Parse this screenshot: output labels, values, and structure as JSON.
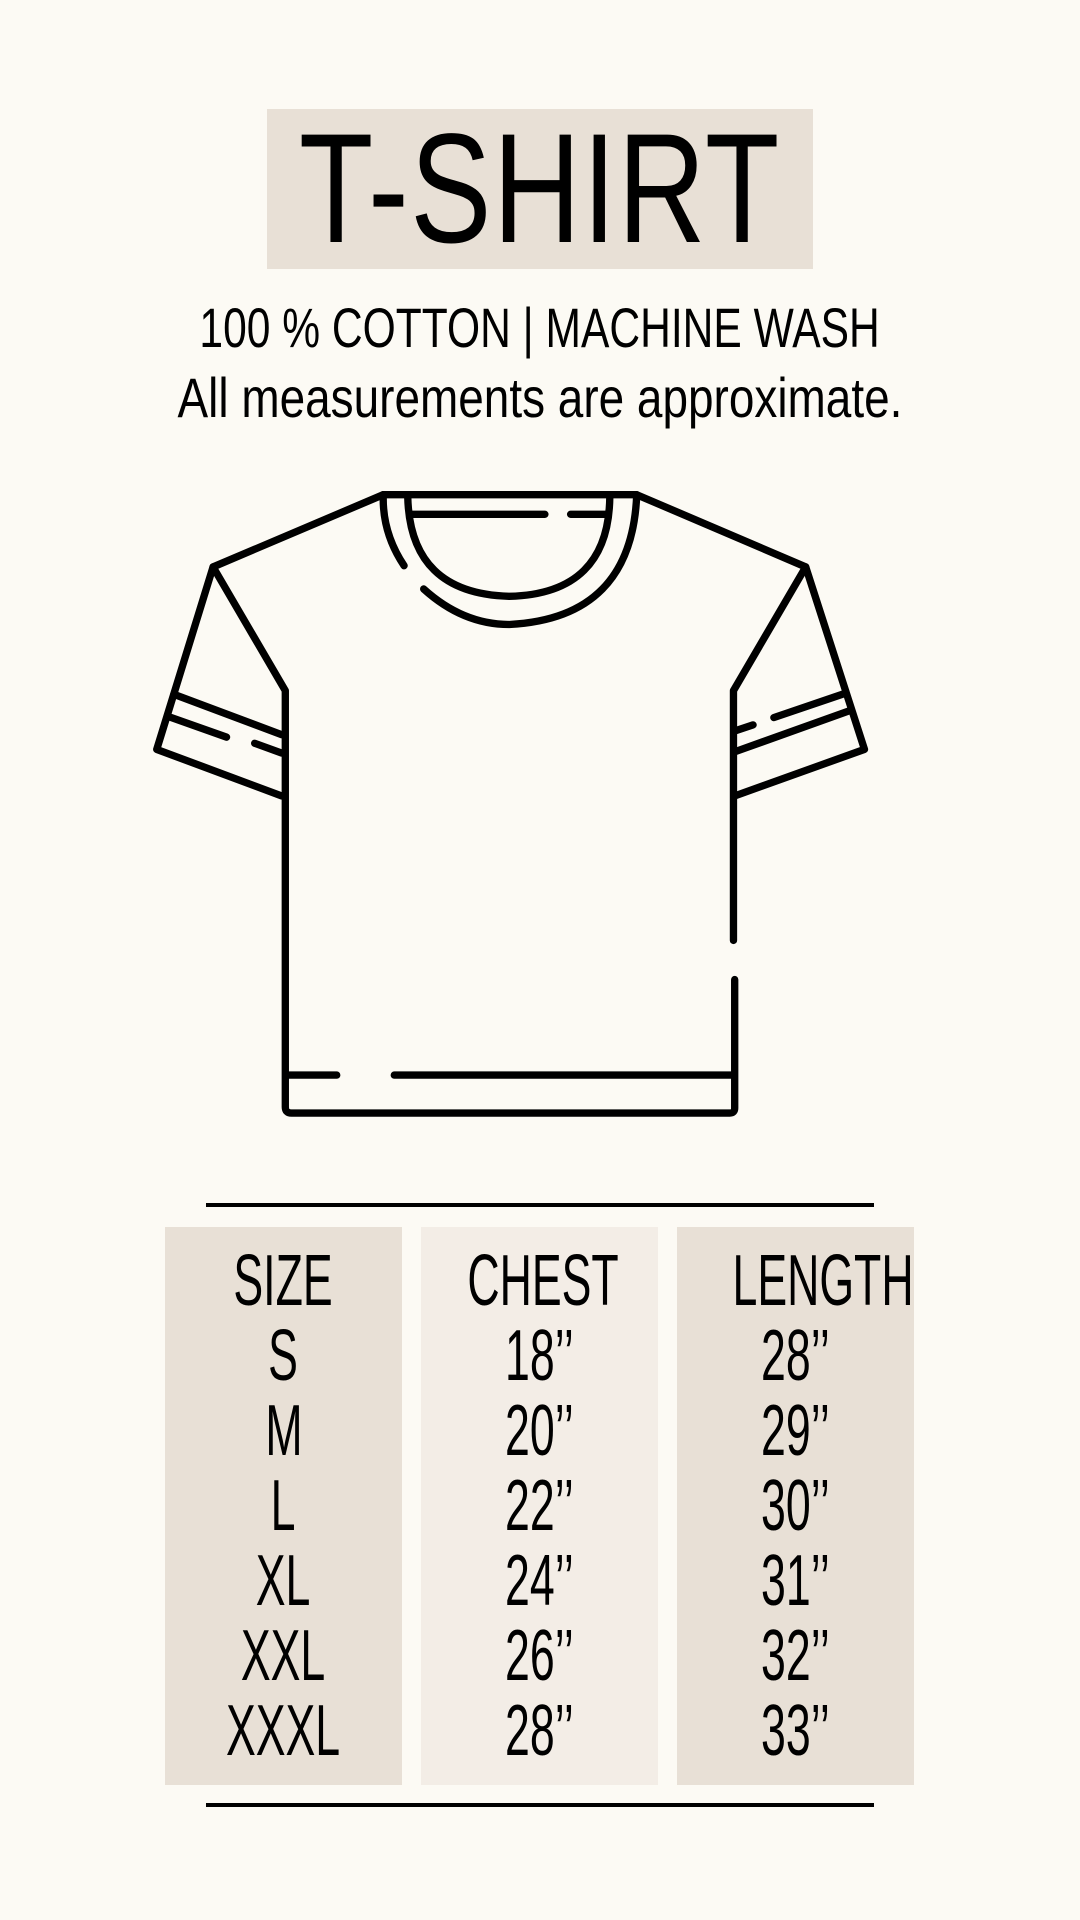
{
  "title": "T-SHIRT",
  "subtitle": "100 % COTTON | MACHINE WASH",
  "note": "All measurements are approximate.",
  "illustration": {
    "icon": "t-shirt-outline-icon"
  },
  "colors": {
    "background": "#fcfaf4",
    "title_box": "#e8e0d6",
    "column_dark": "#e8e0d6",
    "column_light": "#f3ede6",
    "ink": "#000000"
  },
  "size_chart": {
    "columns": [
      {
        "header": "SIZE",
        "values": [
          "S",
          "M",
          "L",
          "XL",
          "XXL",
          "XXXL"
        ]
      },
      {
        "header": "CHEST",
        "values": [
          "18’’",
          "20’’",
          "22’’",
          "24’’",
          "26’’",
          "28’’"
        ]
      },
      {
        "header": "LENGTH",
        "values": [
          "28’’",
          "29’’",
          "30’’",
          "31’’",
          "32’’",
          "33’’"
        ]
      }
    ]
  }
}
